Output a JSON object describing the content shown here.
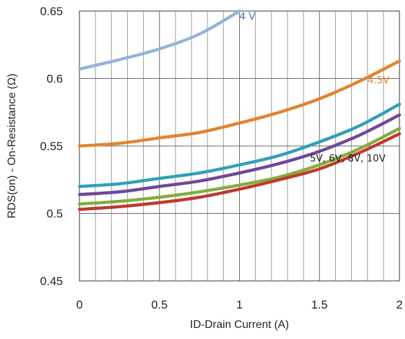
{
  "chart_data": {
    "type": "line",
    "xlabel": "ID-Drain Current (A)",
    "ylabel": "RDS(on) - On-Resistance (Ω)",
    "xlim": [
      0,
      2
    ],
    "ylim": [
      0.45,
      0.65
    ],
    "x_ticks": [
      "0",
      "0.5",
      "1",
      "1.5",
      "2"
    ],
    "y_ticks": [
      "0.45",
      "0.5",
      "0.55",
      "0.6",
      "0.65"
    ],
    "grid": true,
    "minor_x_grid": 0.1,
    "series": [
      {
        "name": "4 V",
        "color": "#95b3d7",
        "x": [
          0,
          0.25,
          0.5,
          0.75,
          1.0
        ],
        "y": [
          0.607,
          0.614,
          0.622,
          0.633,
          0.65
        ]
      },
      {
        "name": "4.5V",
        "color": "#e3832f",
        "x": [
          0,
          0.25,
          0.5,
          0.75,
          1.0,
          1.25,
          1.5,
          1.75,
          2.0
        ],
        "y": [
          0.55,
          0.552,
          0.556,
          0.56,
          0.567,
          0.575,
          0.585,
          0.598,
          0.613
        ]
      },
      {
        "name": "5V",
        "color": "#31a0b8",
        "x": [
          0,
          0.25,
          0.5,
          0.75,
          1.0,
          1.25,
          1.5,
          1.75,
          2.0
        ],
        "y": [
          0.52,
          0.522,
          0.526,
          0.53,
          0.536,
          0.543,
          0.553,
          0.565,
          0.581
        ]
      },
      {
        "name": "6V",
        "color": "#70479a",
        "x": [
          0,
          0.25,
          0.5,
          0.75,
          1.0,
          1.25,
          1.5,
          1.75,
          2.0
        ],
        "y": [
          0.514,
          0.516,
          0.52,
          0.524,
          0.53,
          0.537,
          0.546,
          0.558,
          0.573
        ]
      },
      {
        "name": "8V",
        "color": "#82ad3f",
        "x": [
          0,
          0.25,
          0.5,
          0.75,
          1.0,
          1.25,
          1.5,
          1.75,
          2.0
        ],
        "y": [
          0.507,
          0.509,
          0.512,
          0.516,
          0.521,
          0.527,
          0.536,
          0.548,
          0.563
        ]
      },
      {
        "name": "10V",
        "color": "#c0392b",
        "x": [
          0,
          0.25,
          0.5,
          0.75,
          1.0,
          1.25,
          1.5,
          1.75,
          2.0
        ],
        "y": [
          0.503,
          0.505,
          0.508,
          0.512,
          0.518,
          0.525,
          0.533,
          0.545,
          0.559
        ]
      }
    ],
    "annotations": [
      {
        "text": "4 V",
        "color": "#4f6fa0",
        "x": 1.0,
        "y": 0.6435
      },
      {
        "text": "4.5V",
        "color": "#e3832f",
        "x": 1.8,
        "y": 0.5965
      },
      {
        "text": "5V, 6V, 8V, 10V",
        "color": "#222222",
        "x": 1.44,
        "y": 0.5385
      }
    ]
  }
}
